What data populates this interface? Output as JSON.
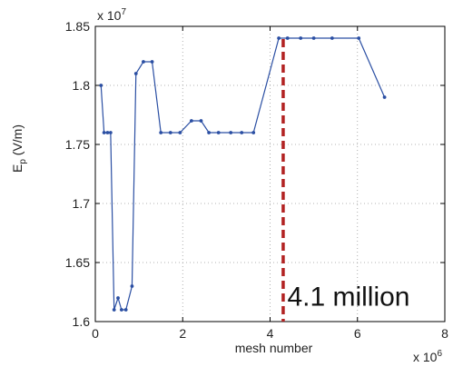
{
  "chart_data": {
    "type": "line",
    "xlabel": "mesh number",
    "ylabel_main": "E",
    "ylabel_sub": "p",
    "ylabel_unit": " (V/m)",
    "x_multiplier": "x 10",
    "x_multiplier_exp": "6",
    "y_multiplier": "x 10",
    "y_multiplier_exp": "7",
    "xlim": [
      0,
      8
    ],
    "ylim": [
      1.6,
      1.85
    ],
    "x_ticks": [
      0,
      2,
      4,
      6,
      8
    ],
    "y_ticks": [
      1.6,
      1.65,
      1.7,
      1.75,
      1.8,
      1.85
    ],
    "x_tick_labels": [
      "0",
      "2",
      "4",
      "6",
      "8"
    ],
    "y_tick_labels": [
      "1.6",
      "1.65",
      "1.7",
      "1.75",
      "1.8",
      "1.85"
    ],
    "grid": true,
    "series_color": "#2b4fa3",
    "series": [
      {
        "x": [
          0.13,
          0.2,
          0.28,
          0.35,
          0.43,
          0.52,
          0.6,
          0.7,
          0.84,
          0.93,
          1.1,
          1.3,
          1.5,
          1.72,
          1.94,
          2.2,
          2.42,
          2.6,
          2.82,
          3.1,
          3.35,
          3.62,
          4.2,
          4.4,
          4.7,
          5.0,
          5.42,
          6.03,
          6.62
        ],
        "y": [
          1.8,
          1.76,
          1.76,
          1.76,
          1.61,
          1.62,
          1.61,
          1.61,
          1.63,
          1.81,
          1.82,
          1.82,
          1.76,
          1.76,
          1.76,
          1.77,
          1.77,
          1.76,
          1.76,
          1.76,
          1.76,
          1.76,
          1.84,
          1.84,
          1.84,
          1.84,
          1.84,
          1.84,
          1.79
        ]
      }
    ],
    "vline": {
      "x": 4.3,
      "color": "#b22222"
    },
    "annotation": {
      "text": "4.1 million",
      "x": 5.1,
      "y": 1.615
    }
  }
}
